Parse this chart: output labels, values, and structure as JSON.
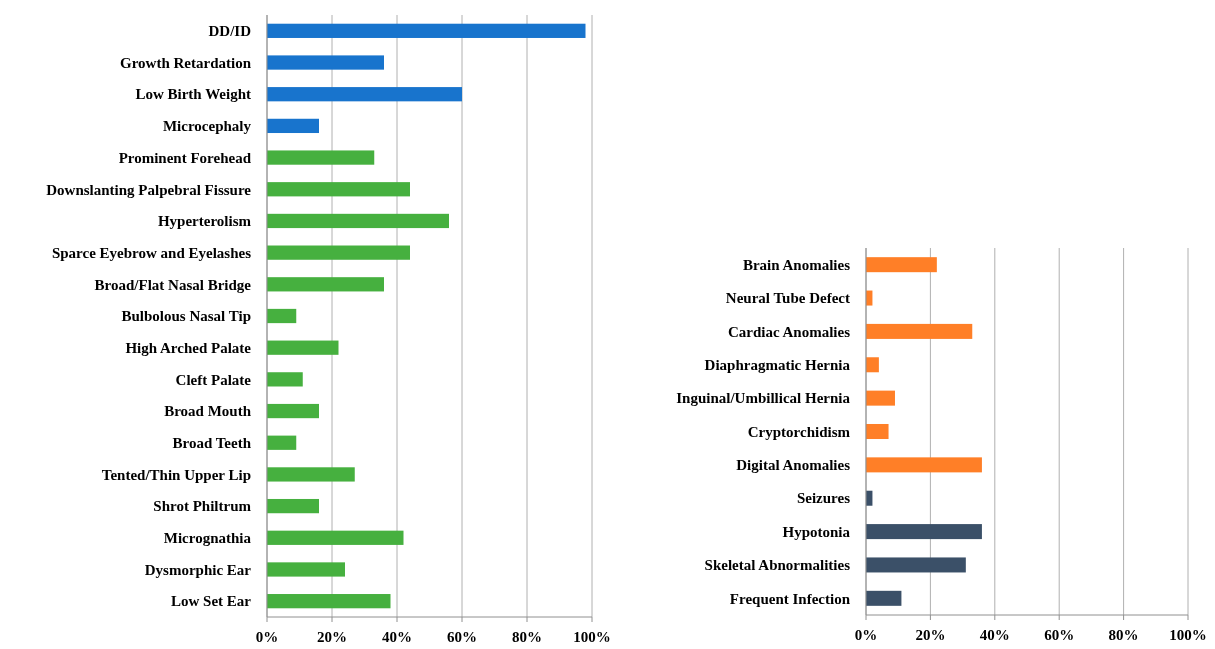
{
  "chart_data": [
    {
      "type": "bar",
      "orientation": "horizontal",
      "categories": [
        "DD/ID",
        "Growth Retardation",
        "Low Birth Weight",
        "Microcephaly",
        "Prominent Forehead",
        "Downslanting Palpebral Fissure",
        "Hyperterolism",
        "Sparce Eyebrow and Eyelashes",
        "Broad/Flat Nasal Bridge",
        "Bulbolous Nasal Tip",
        "High Arched Palate",
        "Cleft Palate",
        "Broad Mouth",
        "Broad Teeth",
        "Tented/Thin Upper Lip",
        "Shrot Philtrum",
        "Micrognathia",
        "Dysmorphic Ear",
        "Low Set Ear"
      ],
      "values": [
        98,
        36,
        60,
        16,
        33,
        44,
        56,
        44,
        36,
        9,
        22,
        11,
        16,
        9,
        27,
        16,
        42,
        24,
        38
      ],
      "colors": [
        "#1874cd",
        "#1874cd",
        "#1874cd",
        "#1874cd",
        "#46b03f",
        "#46b03f",
        "#46b03f",
        "#46b03f",
        "#46b03f",
        "#46b03f",
        "#46b03f",
        "#46b03f",
        "#46b03f",
        "#46b03f",
        "#46b03f",
        "#46b03f",
        "#46b03f",
        "#46b03f",
        "#46b03f"
      ],
      "xlim": [
        0,
        100
      ],
      "xticks": [
        {
          "value": 0,
          "label": "0%"
        },
        {
          "value": 20,
          "label": "20%"
        },
        {
          "value": 40,
          "label": "40%"
        },
        {
          "value": 60,
          "label": "60%"
        },
        {
          "value": 80,
          "label": "80%"
        },
        {
          "value": 100,
          "label": "100%"
        }
      ],
      "grid": "x"
    },
    {
      "type": "bar",
      "orientation": "horizontal",
      "categories": [
        "Brain Anomalies",
        "Neural Tube Defect",
        "Cardiac Anomalies",
        "Diaphragmatic Hernia",
        "Inguinal/Umbillical Hernia",
        "Cryptorchidism",
        "Digital Anomalies",
        "Seizures",
        "Hypotonia",
        "Skeletal Abnormalities",
        "Frequent Infection"
      ],
      "values": [
        22,
        2,
        33,
        4,
        9,
        7,
        36,
        2,
        36,
        31,
        11
      ],
      "colors": [
        "#ff7f27",
        "#ff7f27",
        "#ff7f27",
        "#ff7f27",
        "#ff7f27",
        "#ff7f27",
        "#ff7f27",
        "#3b5068",
        "#3b5068",
        "#3b5068",
        "#3b5068"
      ],
      "xlim": [
        0,
        100
      ],
      "xticks": [
        {
          "value": 0,
          "label": "0%"
        },
        {
          "value": 20,
          "label": "20%"
        },
        {
          "value": 40,
          "label": "40%"
        },
        {
          "value": 60,
          "label": "60%"
        },
        {
          "value": 80,
          "label": "80%"
        },
        {
          "value": 100,
          "label": "100%"
        }
      ],
      "grid": "x"
    }
  ]
}
